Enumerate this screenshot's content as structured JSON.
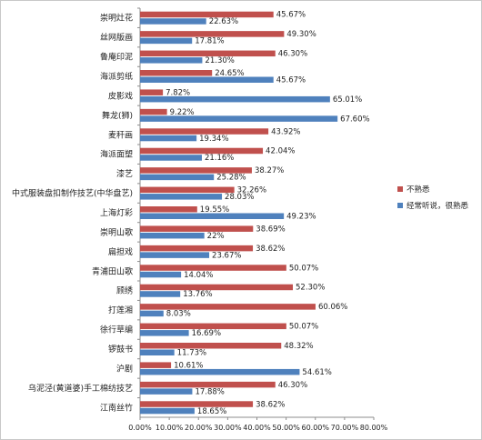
{
  "chart_data": {
    "type": "bar",
    "orientation": "horizontal",
    "categories": [
      "崇明灶花",
      "丝网版画",
      "鲁庵印泥",
      "海派剪纸",
      "皮影戏",
      "舞龙(狮)",
      "麦秆画",
      "海派面塑",
      "漆艺",
      "中式服装盘扣制作技艺(中华盘艺)",
      "上海灯彩",
      "崇明山歌",
      "扁担戏",
      "青浦田山歌",
      "顾绣",
      "打莲湘",
      "徐行草编",
      "锣鼓书",
      "沪剧",
      "乌泥泾(黄道婆)手工棉纺技艺",
      "江南丝竹"
    ],
    "series": [
      {
        "name": "不熟悉",
        "color": "#c0504d",
        "values": [
          45.67,
          49.3,
          46.3,
          24.65,
          7.82,
          9.22,
          43.92,
          42.04,
          38.27,
          32.26,
          19.55,
          38.69,
          38.62,
          50.07,
          52.3,
          60.06,
          50.07,
          48.32,
          10.61,
          46.3,
          38.62
        ],
        "labels": [
          "45.67%",
          "49.30%",
          "46.30%",
          "24.65%",
          "7.82%",
          "9.22%",
          "43.92%",
          "42.04%",
          "38.27%",
          "32.26%",
          "19.55%",
          "38.69%",
          "38.62%",
          "50.07%",
          "52.30%",
          "60.06%",
          "50.07%",
          "48.32%",
          "10.61%",
          "46.30%",
          "38.62%"
        ]
      },
      {
        "name": "经常听说，很熟悉",
        "color": "#4f81bd",
        "values": [
          22.63,
          17.81,
          21.3,
          45.67,
          65.01,
          67.6,
          19.34,
          21.16,
          25.28,
          28.03,
          49.23,
          22.0,
          23.67,
          14.04,
          13.76,
          8.03,
          16.69,
          11.73,
          54.61,
          17.88,
          18.65
        ],
        "labels": [
          "22.63%",
          "17.81%",
          "21.30%",
          "45.67%",
          "65.01%",
          "67.60%",
          "19.34%",
          "21.16%",
          "25.28%",
          "28.03%",
          "49.23%",
          "22%",
          "23.67%",
          "14.04%",
          "13.76%",
          "8.03%",
          "16.69%",
          "11.73%",
          "54.61%",
          "17.88%",
          "18.65%"
        ]
      }
    ],
    "xlim": [
      0,
      80
    ],
    "x_ticks": [
      "0.00%",
      "10.00%",
      "20.00%",
      "30.00%",
      "40.00%",
      "50.00%",
      "60.00%",
      "70.00%",
      "80.00%"
    ],
    "grid": false,
    "legend_position": "right"
  }
}
